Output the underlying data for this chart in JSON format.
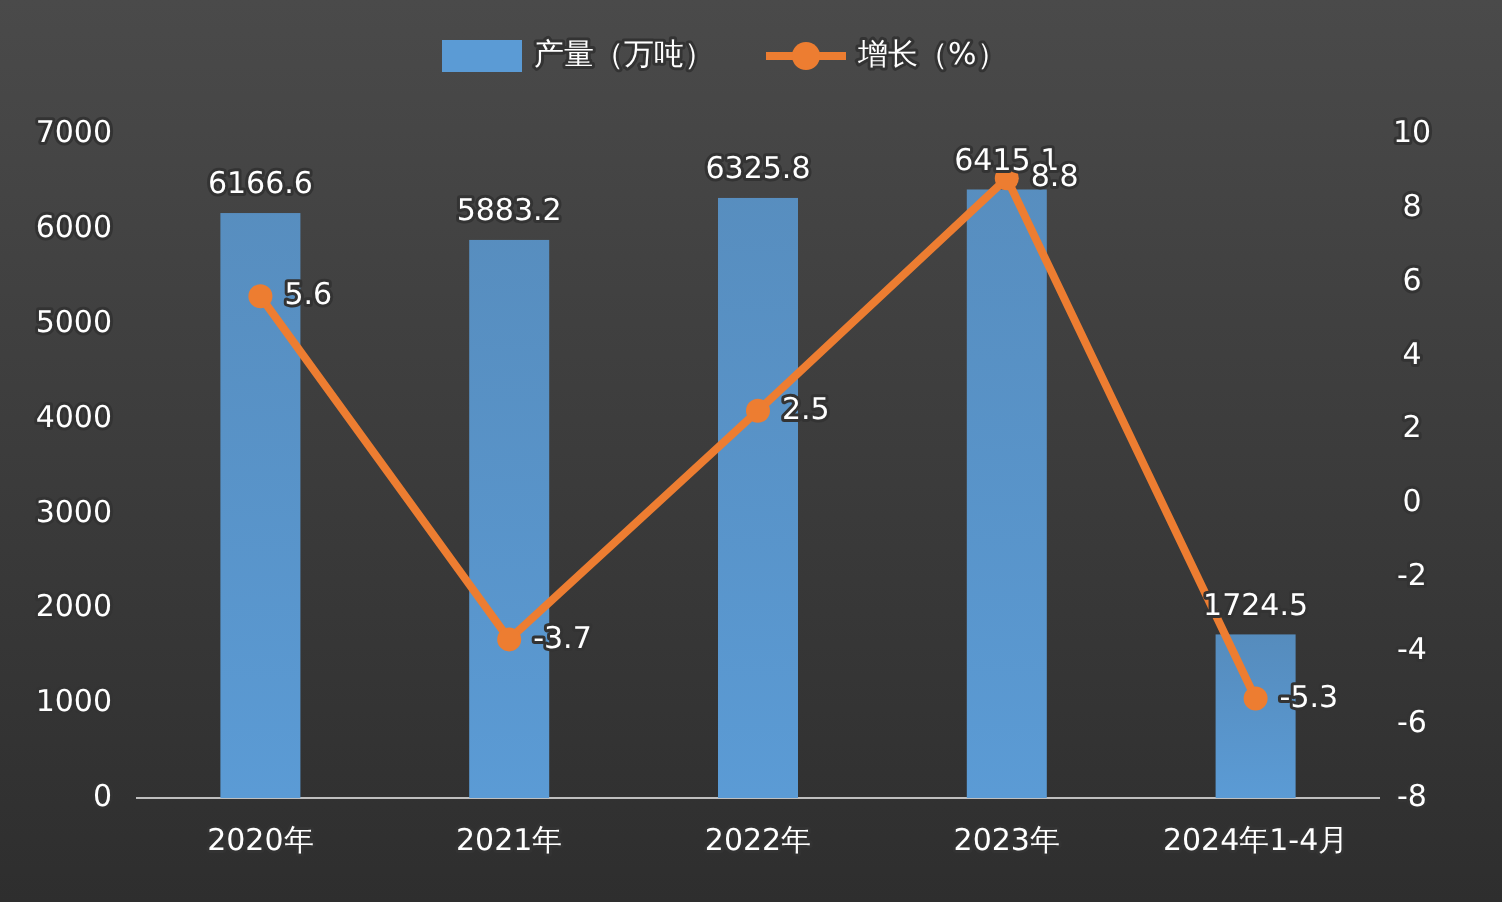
{
  "chart_data": {
    "type": "bar",
    "categories": [
      "2020年",
      "2021年",
      "2022年",
      "2023年",
      "2024年1-4月"
    ],
    "series": [
      {
        "name": "产量（万吨）",
        "color": "#5b9bd5",
        "values": [
          6166.6,
          5883.2,
          6325.8,
          6415.1,
          1724.5
        ]
      },
      {
        "name": "增长（%）",
        "type": "line",
        "axis": "y2",
        "color": "#ed7d31",
        "values": [
          5.6,
          -3.7,
          2.5,
          8.8,
          -5.3
        ]
      }
    ],
    "ylim": [
      0,
      7000
    ],
    "yticks": [
      0,
      1000,
      2000,
      3000,
      4000,
      5000,
      6000,
      7000
    ],
    "y2lim": [
      -8,
      10
    ],
    "y2ticks": [
      -8,
      -6,
      -4,
      -2,
      0,
      2,
      4,
      6,
      8,
      10
    ],
    "legend": "top",
    "data_labels": true,
    "marker": "circle"
  }
}
